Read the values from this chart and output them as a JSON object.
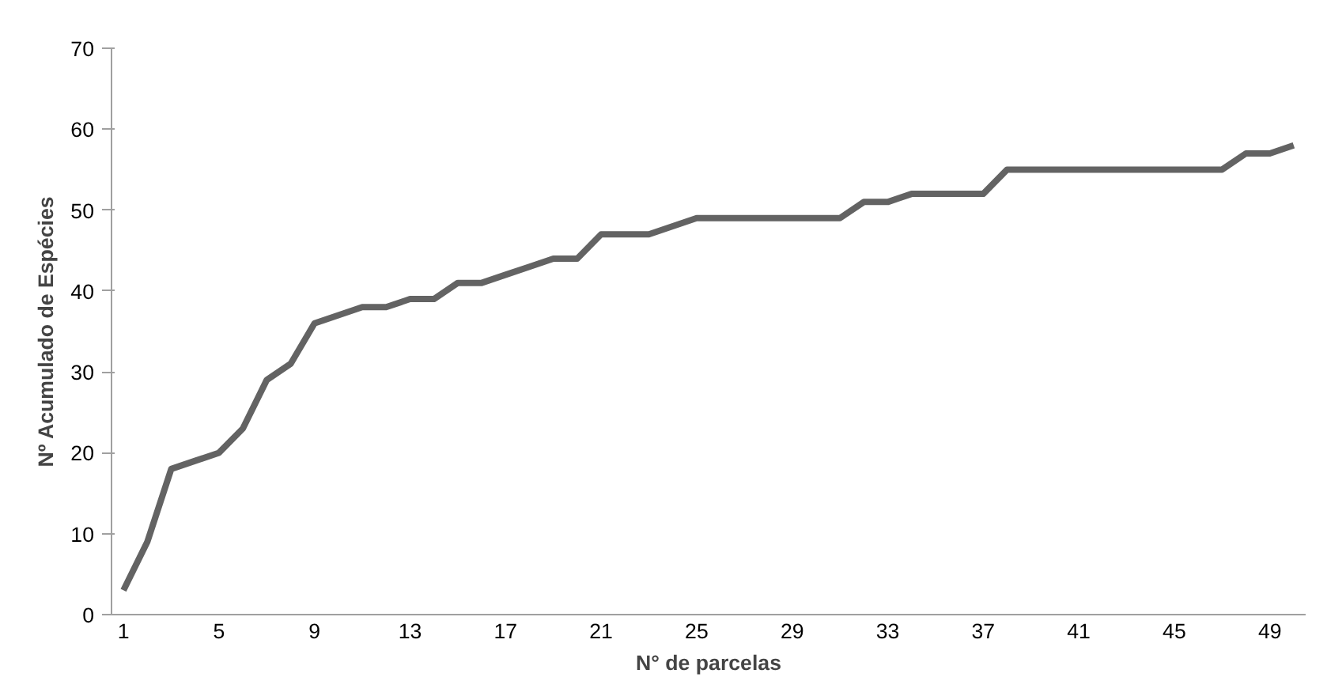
{
  "chart_data": {
    "type": "line",
    "xlabel": "N° de parcelas",
    "ylabel": "Nº Acumulado de Espécies",
    "categories": [
      "1",
      null,
      null,
      null,
      "5",
      null,
      null,
      null,
      "9",
      null,
      null,
      null,
      "13",
      null,
      null,
      null,
      "17",
      null,
      null,
      null,
      "21",
      null,
      null,
      null,
      "25",
      null,
      null,
      null,
      "29",
      null,
      null,
      null,
      "33",
      null,
      null,
      null,
      "37",
      null,
      null,
      null,
      "41",
      null,
      null,
      null,
      "45",
      null,
      null,
      null,
      "49",
      null
    ],
    "series": [
      {
        "color": "#636363",
        "values": [
          3,
          9,
          18,
          19,
          20,
          23,
          29,
          31,
          36,
          37,
          38,
          38,
          39,
          39,
          41,
          41,
          42,
          43,
          44,
          44,
          47,
          47,
          47,
          48,
          49,
          49,
          49,
          49,
          49,
          49,
          49,
          51,
          51,
          52,
          52,
          52,
          52,
          55,
          55,
          55,
          55,
          55,
          55,
          55,
          55,
          55,
          55,
          57,
          57,
          58
        ]
      }
    ],
    "ylim": [
      0,
      70
    ],
    "yticks": [
      0,
      10,
      20,
      30,
      40,
      50,
      60,
      70
    ],
    "grid": false,
    "marker": "none",
    "line_style": "solid"
  }
}
